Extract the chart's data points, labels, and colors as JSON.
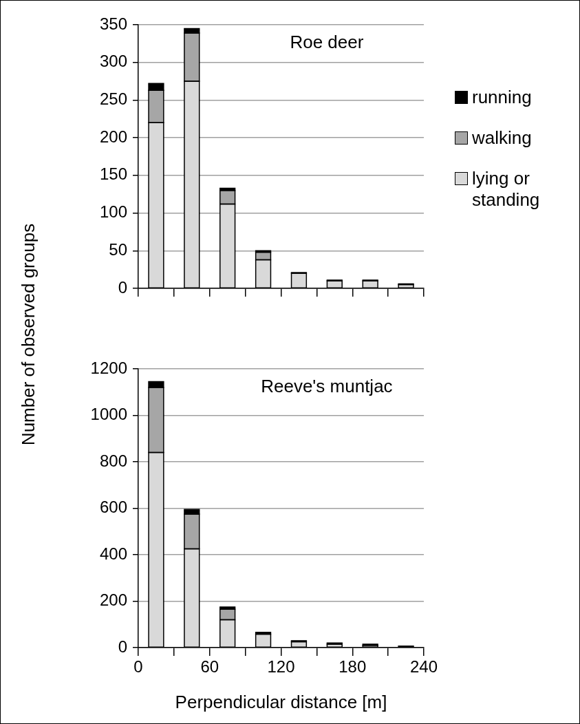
{
  "chart_data": [
    {
      "type": "bar",
      "title": "Roe deer",
      "ylabel": "Number of observed groups",
      "x": [
        15,
        45,
        75,
        105,
        135,
        165,
        195,
        225
      ],
      "xlim": [
        0,
        240
      ],
      "xticks": [
        0,
        {
          "value": 30,
          "label": null
        },
        60,
        {
          "value": 90,
          "label": null
        },
        120,
        {
          "value": 150,
          "label": null
        },
        180,
        {
          "value": 210,
          "label": null
        },
        240
      ],
      "ylim": [
        0,
        350
      ],
      "yticks": [
        0,
        50,
        100,
        150,
        200,
        250,
        300,
        350
      ],
      "stacked": true,
      "grid": "y",
      "legend": "right",
      "tick_labels": "y",
      "series": [
        {
          "name": "lying or standing",
          "color": "#d9d9d9",
          "values": [
            220,
            275,
            112,
            38,
            20,
            10,
            10,
            5
          ]
        },
        {
          "name": "walking",
          "color": "#a6a6a6",
          "values": [
            43,
            64,
            18,
            10,
            0,
            0,
            0,
            0
          ]
        },
        {
          "name": "running",
          "color": "#000000",
          "values": [
            9,
            6,
            3,
            2,
            1,
            1,
            1,
            1
          ]
        }
      ]
    },
    {
      "type": "bar",
      "title": "Reeve's muntjac",
      "xlabel": "Perpendicular distance [m]",
      "x": [
        15,
        45,
        75,
        105,
        135,
        165,
        195,
        225
      ],
      "xlim": [
        0,
        240
      ],
      "xticks": [
        0,
        {
          "value": 30,
          "label": null
        },
        60,
        {
          "value": 90,
          "label": null
        },
        120,
        {
          "value": 150,
          "label": null
        },
        180,
        {
          "value": 210,
          "label": null
        },
        240
      ],
      "ylim": [
        0,
        1200
      ],
      "yticks": [
        0,
        200,
        400,
        600,
        800,
        1000,
        1200
      ],
      "stacked": true,
      "grid": "y",
      "series": [
        {
          "color": "#d9d9d9",
          "values": [
            840,
            425,
            120,
            58,
            25,
            15,
            10,
            null
          ]
        },
        {
          "color": "#a6a6a6",
          "values": [
            280,
            150,
            45,
            null,
            0,
            0,
            0,
            0
          ]
        },
        {
          "color": "#000000",
          "values": [
            25,
            20,
            10,
            8,
            5,
            5,
            5,
            7
          ]
        }
      ]
    }
  ]
}
